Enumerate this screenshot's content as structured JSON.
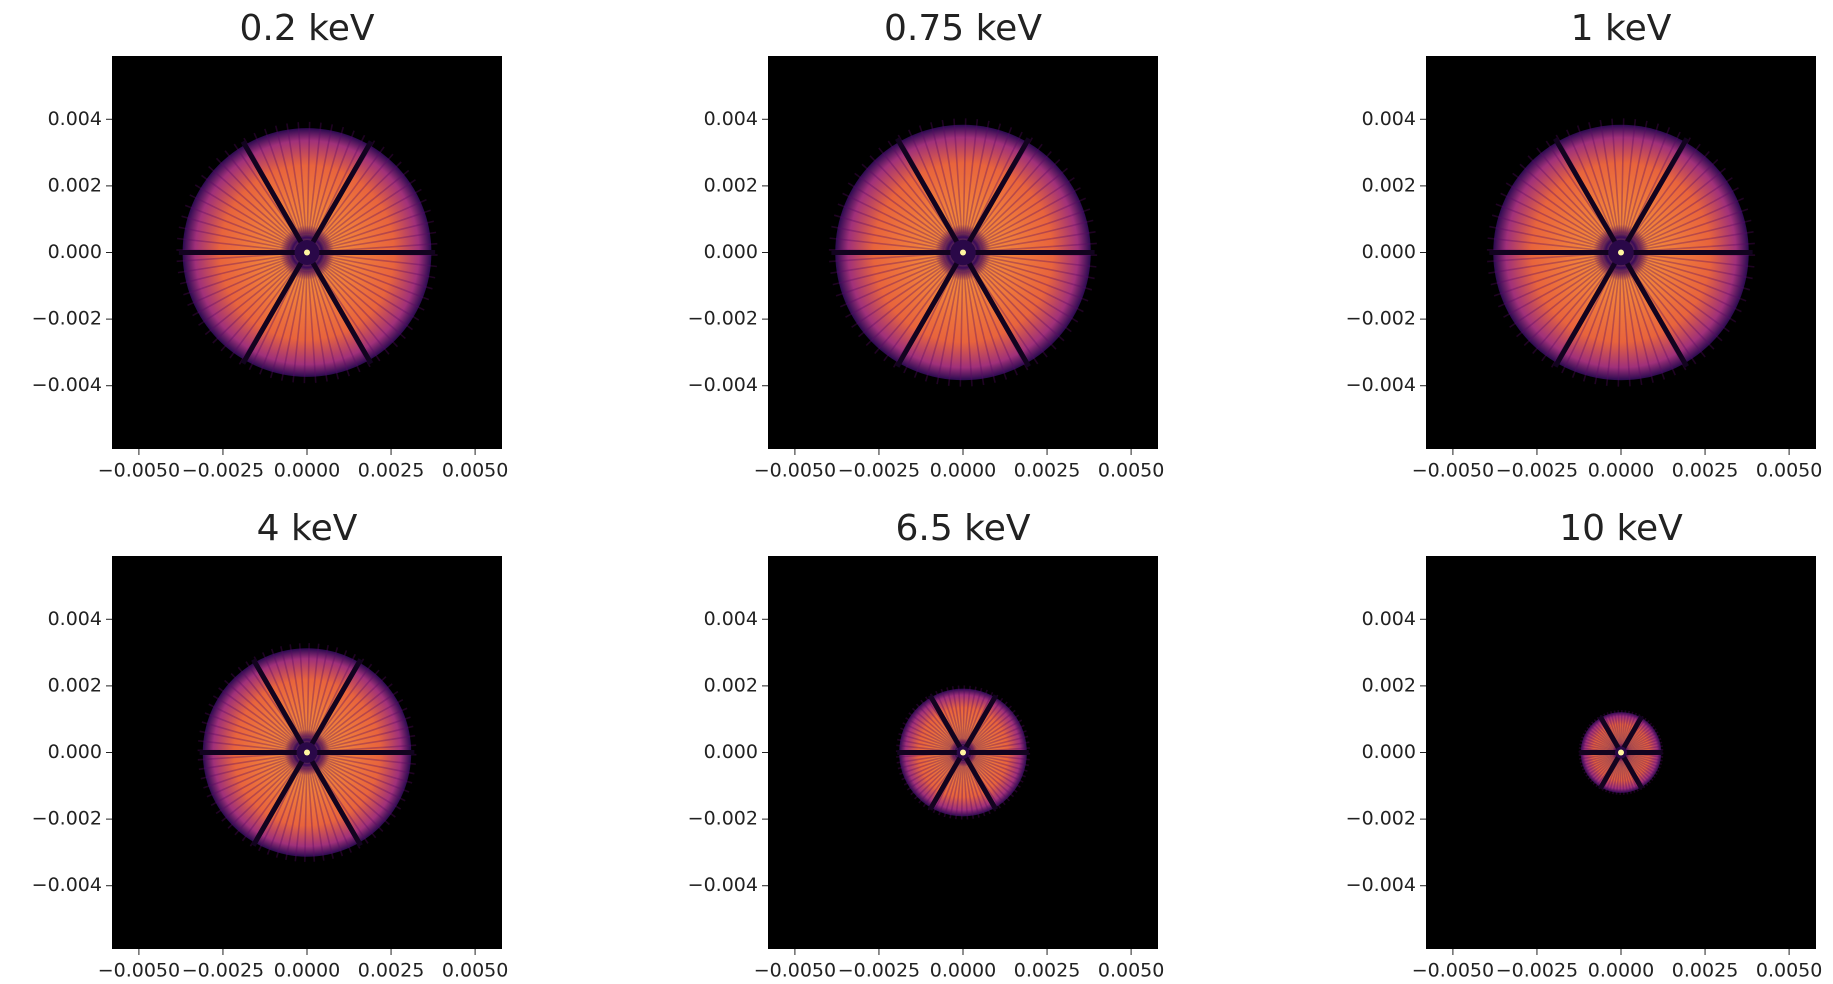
{
  "chart_data": [
    {
      "type": "image",
      "title": "0.2 keV",
      "radius": 0.0037,
      "xlim": [
        -0.0058,
        0.0058
      ],
      "ylim": [
        -0.0059,
        0.0059
      ],
      "xticks": [
        {
          "value": -0.005,
          "label": "−0.0050"
        },
        {
          "value": -0.0025,
          "label": "−0.0025"
        },
        {
          "value": 0,
          "label": "0.0000"
        },
        {
          "value": 0.0025,
          "label": "0.0025"
        },
        {
          "value": 0.005,
          "label": "0.0050"
        }
      ],
      "yticks": [
        {
          "value": 0.004,
          "label": "0.004"
        },
        {
          "value": 0.002,
          "label": "0.002"
        },
        {
          "value": 0,
          "label": "0.000"
        },
        {
          "value": -0.002,
          "label": "−0.002"
        },
        {
          "value": -0.004,
          "label": "−0.004"
        }
      ]
    },
    {
      "type": "image",
      "title": "0.75 keV",
      "radius": 0.0038,
      "xlim": [
        -0.0058,
        0.0058
      ],
      "ylim": [
        -0.0059,
        0.0059
      ],
      "xticks": [
        {
          "value": -0.005,
          "label": "−0.0050"
        },
        {
          "value": -0.0025,
          "label": "−0.0025"
        },
        {
          "value": 0,
          "label": "0.0000"
        },
        {
          "value": 0.0025,
          "label": "0.0025"
        },
        {
          "value": 0.005,
          "label": "0.0050"
        }
      ],
      "yticks": [
        {
          "value": 0.004,
          "label": "0.004"
        },
        {
          "value": 0.002,
          "label": "0.002"
        },
        {
          "value": 0,
          "label": "0.000"
        },
        {
          "value": -0.002,
          "label": "−0.002"
        },
        {
          "value": -0.004,
          "label": "−0.004"
        }
      ]
    },
    {
      "type": "image",
      "title": "1 keV",
      "radius": 0.0038,
      "xlim": [
        -0.0058,
        0.0058
      ],
      "ylim": [
        -0.0059,
        0.0059
      ],
      "xticks": [
        {
          "value": -0.005,
          "label": "−0.0050"
        },
        {
          "value": -0.0025,
          "label": "−0.0025"
        },
        {
          "value": 0,
          "label": "0.0000"
        },
        {
          "value": 0.0025,
          "label": "0.0025"
        },
        {
          "value": 0.005,
          "label": "0.0050"
        }
      ],
      "yticks": [
        {
          "value": 0.004,
          "label": "0.004"
        },
        {
          "value": 0.002,
          "label": "0.002"
        },
        {
          "value": 0,
          "label": "0.000"
        },
        {
          "value": -0.002,
          "label": "−0.002"
        },
        {
          "value": -0.004,
          "label": "−0.004"
        }
      ]
    },
    {
      "type": "image",
      "title": "4 keV",
      "radius": 0.0031,
      "xlim": [
        -0.0058,
        0.0058
      ],
      "ylim": [
        -0.0059,
        0.0059
      ],
      "xticks": [
        {
          "value": -0.005,
          "label": "−0.0050"
        },
        {
          "value": -0.0025,
          "label": "−0.0025"
        },
        {
          "value": 0,
          "label": "0.0000"
        },
        {
          "value": 0.0025,
          "label": "0.0025"
        },
        {
          "value": 0.005,
          "label": "0.0050"
        }
      ],
      "yticks": [
        {
          "value": 0.004,
          "label": "0.004"
        },
        {
          "value": 0.002,
          "label": "0.002"
        },
        {
          "value": 0,
          "label": "0.000"
        },
        {
          "value": -0.002,
          "label": "−0.002"
        },
        {
          "value": -0.004,
          "label": "−0.004"
        }
      ]
    },
    {
      "type": "image",
      "title": "6.5 keV",
      "radius": 0.0019,
      "xlim": [
        -0.0058,
        0.0058
      ],
      "ylim": [
        -0.0059,
        0.0059
      ],
      "xticks": [
        {
          "value": -0.005,
          "label": "−0.0050"
        },
        {
          "value": -0.0025,
          "label": "−0.0025"
        },
        {
          "value": 0,
          "label": "0.0000"
        },
        {
          "value": 0.0025,
          "label": "0.0025"
        },
        {
          "value": 0.005,
          "label": "0.0050"
        }
      ],
      "yticks": [
        {
          "value": 0.004,
          "label": "0.004"
        },
        {
          "value": 0.002,
          "label": "0.002"
        },
        {
          "value": 0,
          "label": "0.000"
        },
        {
          "value": -0.002,
          "label": "−0.002"
        },
        {
          "value": -0.004,
          "label": "−0.004"
        }
      ]
    },
    {
      "type": "image",
      "title": "10 keV",
      "radius": 0.0012,
      "xlim": [
        -0.0058,
        0.0058
      ],
      "ylim": [
        -0.0059,
        0.0059
      ],
      "xticks": [
        {
          "value": -0.005,
          "label": "−0.0050"
        },
        {
          "value": -0.0025,
          "label": "−0.0025"
        },
        {
          "value": 0,
          "label": "0.0000"
        },
        {
          "value": 0.0025,
          "label": "0.0025"
        },
        {
          "value": 0.005,
          "label": "0.0050"
        }
      ],
      "yticks": [
        {
          "value": 0.004,
          "label": "0.004"
        },
        {
          "value": 0.002,
          "label": "0.002"
        },
        {
          "value": 0,
          "label": "0.000"
        },
        {
          "value": -0.002,
          "label": "−0.002"
        },
        {
          "value": -0.004,
          "label": "−0.004"
        }
      ]
    }
  ]
}
